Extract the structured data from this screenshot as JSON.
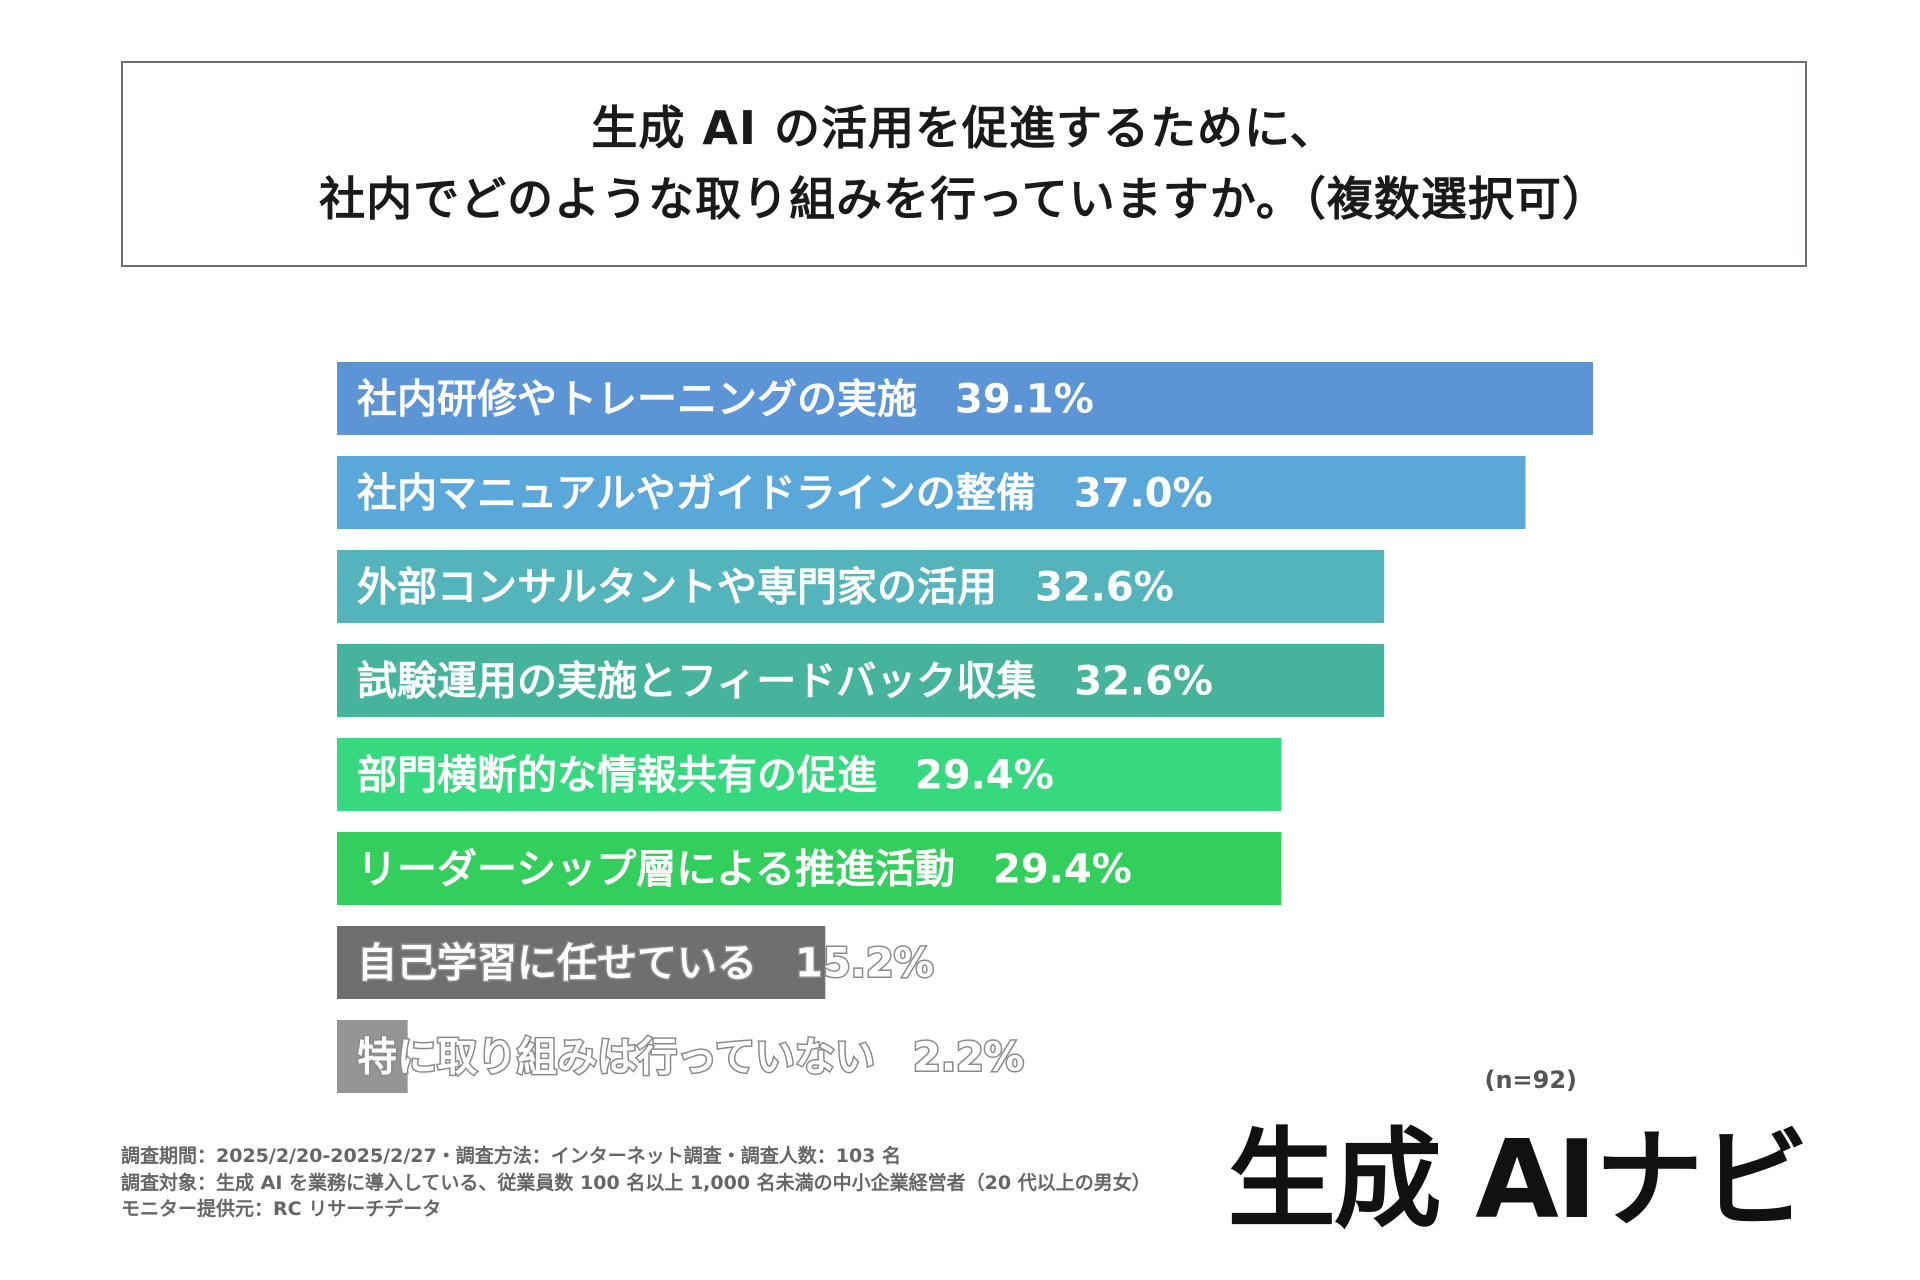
{
  "title": {
    "line1": "生成 AI の活用を促進するために、",
    "line2": "社内でどのような取り組みを行っていますか。（複数選択可）"
  },
  "chart_data": {
    "type": "bar",
    "orientation": "horizontal",
    "categories": [
      "社内研修やトレーニングの実施",
      "社内マニュアルやガイドラインの整備",
      "外部コンサルタントや専門家の活用",
      "試験運用の実施とフィードバック収集",
      "部門横断的な情報共有の促進",
      "リーダーシップ層による推進活動",
      "自己学習に任せている",
      "特に取り組みは行っていない"
    ],
    "values": [
      39.1,
      37.0,
      32.6,
      32.6,
      29.4,
      29.4,
      15.2,
      2.2
    ],
    "value_labels": [
      "39.1%",
      "37.0%",
      "32.6%",
      "32.6%",
      "29.4%",
      "29.4%",
      "15.2%",
      "2.2%"
    ],
    "colors": [
      "#5b95d6",
      "#5aa7d9",
      "#53b4bb",
      "#46b49c",
      "#37d97f",
      "#33cf5d",
      "#6f6f6f",
      "#959595"
    ],
    "xlim": [
      0,
      39.1
    ],
    "title": "生成 AI の活用を促進するために、社内でどのような取り組みを行っていますか。（複数選択可）",
    "xlabel": "",
    "ylabel": "",
    "grid": false,
    "note": "(n=92)"
  },
  "sample_note": "(n=92)",
  "footnotes": [
    "調査期間：2025/2/20-2025/2/27・調査方法：インターネット調査・調査人数：103 名",
    "調査対象：生成 AI を業務に導入している、従業員数 100 名以上 1,000 名未満の中小企業経営者（20 代以上の男女）",
    "モニター提供元：RC リサーチデータ"
  ],
  "brand": {
    "name": "生成 AIナビ"
  }
}
